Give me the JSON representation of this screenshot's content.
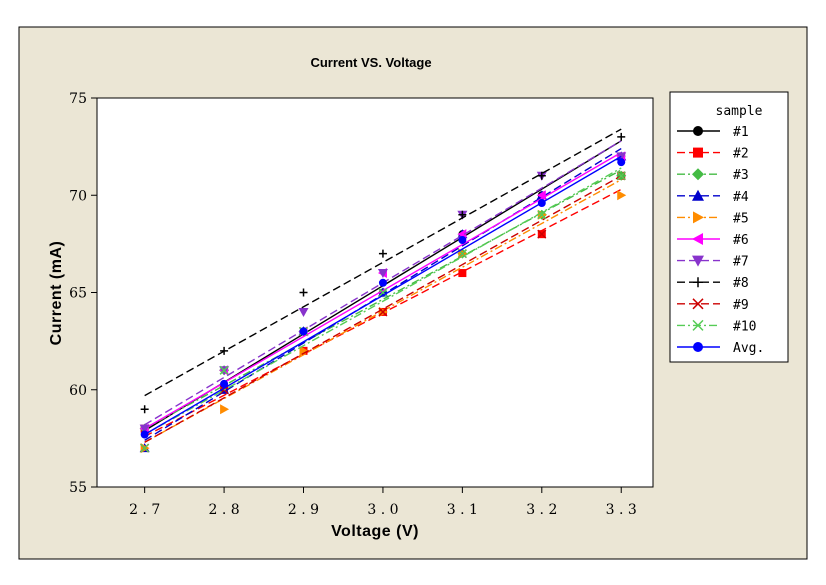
{
  "colors": {
    "background": "#ebe6d5",
    "plot_bg": "#ffffff"
  },
  "chart_data": {
    "type": "line",
    "title": "Current VS. Voltage",
    "xlabel": "Voltage (V)",
    "ylabel": "Current (mA)",
    "x": [
      2.7,
      2.8,
      2.9,
      3.0,
      3.1,
      3.2,
      3.3
    ],
    "x_tick_labels": [
      "2.7",
      "2.8",
      "2.9",
      "3.0",
      "3.1",
      "3.2",
      "3.3"
    ],
    "xlim": [
      2.64,
      3.34
    ],
    "ylim": [
      55,
      75
    ],
    "y_ticks": [
      55,
      60,
      65,
      70,
      75
    ],
    "y_tick_labels": [
      "55",
      "60",
      "65",
      "70",
      "75"
    ],
    "legend_title": "sample",
    "legend_position": "right",
    "series": [
      {
        "name": "#1",
        "color": "#000000",
        "marker": "circle",
        "dash": "solid",
        "values": [
          58,
          60,
          63,
          65,
          68,
          70,
          72
        ],
        "fit": [
          57.9,
          72.8
        ]
      },
      {
        "name": "#2",
        "color": "#ff0000",
        "marker": "square",
        "dash": "dashed",
        "values": [
          58,
          60,
          62,
          64,
          66,
          68,
          71
        ],
        "fit": [
          57.6,
          70.3
        ]
      },
      {
        "name": "#3",
        "color": "#44bb44",
        "marker": "diamond",
        "dash": "dashdot",
        "values": [
          58,
          61,
          63,
          65,
          67,
          69,
          71
        ],
        "fit": [
          58.0,
          71.3
        ]
      },
      {
        "name": "#4",
        "color": "#0000cc",
        "marker": "triangle-up",
        "dash": "dashed",
        "values": [
          57,
          60,
          63,
          65,
          68,
          70,
          72
        ],
        "fit": [
          57.4,
          72.4
        ]
      },
      {
        "name": "#5",
        "color": "#ff8c00",
        "marker": "triangle-right",
        "dash": "dashdot",
        "values": [
          57,
          59,
          62,
          64,
          67,
          69,
          70
        ],
        "fit": [
          57.3,
          70.8
        ]
      },
      {
        "name": "#6",
        "color": "#ff00ff",
        "marker": "triangle-left",
        "dash": "solid",
        "values": [
          58,
          61,
          63,
          66,
          68,
          70,
          72
        ],
        "fit": [
          58.0,
          72.2
        ]
      },
      {
        "name": "#7",
        "color": "#8833cc",
        "marker": "triangle-down",
        "dash": "dashed",
        "values": [
          58,
          61,
          64,
          66,
          69,
          71,
          72
        ],
        "fit": [
          58.2,
          72.8
        ]
      },
      {
        "name": "#8",
        "color": "#000000",
        "marker": "plus",
        "dash": "dashed",
        "values": [
          59,
          62,
          65,
          67,
          69,
          71,
          73
        ],
        "fit": [
          59.7,
          73.4
        ]
      },
      {
        "name": "#9",
        "color": "#cc0000",
        "marker": "x",
        "dash": "dashed",
        "values": [
          57,
          60,
          63,
          64,
          67,
          68,
          71
        ],
        "fit": [
          57.3,
          71.0
        ]
      },
      {
        "name": "#10",
        "color": "#55cc55",
        "marker": "x",
        "dash": "dashdot",
        "values": [
          57,
          61,
          63,
          65,
          67,
          69,
          71
        ],
        "fit": [
          57.7,
          71.4
        ]
      },
      {
        "name": "Avg.",
        "color": "#0000ff",
        "marker": "circle",
        "dash": "solid",
        "values": [
          57.7,
          60.3,
          63.0,
          65.5,
          67.7,
          69.6,
          71.7
        ],
        "fit": [
          57.7,
          72.0
        ]
      }
    ]
  }
}
